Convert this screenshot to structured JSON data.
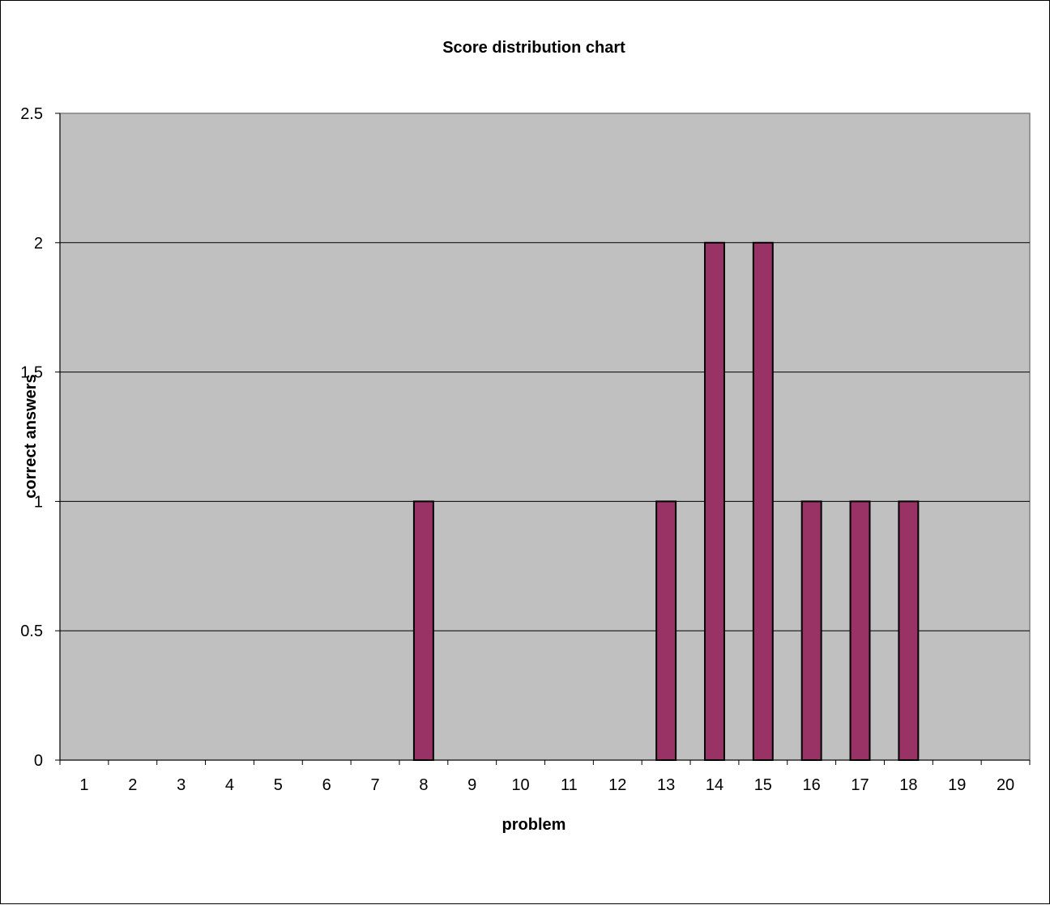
{
  "chart_data": {
    "type": "bar",
    "title": "Score distribution chart",
    "xlabel": "problem",
    "ylabel": "correct answers",
    "categories": [
      "1",
      "2",
      "3",
      "4",
      "5",
      "6",
      "7",
      "8",
      "9",
      "10",
      "11",
      "12",
      "13",
      "14",
      "15",
      "16",
      "17",
      "18",
      "19",
      "20"
    ],
    "values": [
      0,
      0,
      0,
      0,
      0,
      0,
      0,
      1,
      0,
      0,
      0,
      0,
      1,
      2,
      2,
      1,
      1,
      1,
      0,
      0
    ],
    "ylim": [
      0,
      2.5
    ],
    "yticks": [
      "0",
      "0.5",
      "1",
      "1.5",
      "2",
      "2.5"
    ],
    "grid": true,
    "legend": "none",
    "colors": {
      "bar_fill": "#993366",
      "bar_stroke": "#000000",
      "plot_background": "#c0c0c0",
      "grid": "#000000"
    }
  }
}
